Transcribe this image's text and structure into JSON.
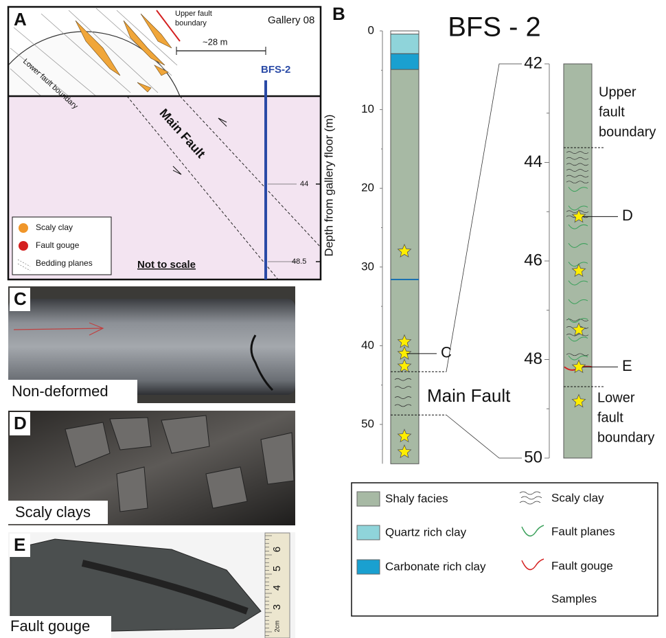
{
  "panel_a": {
    "letter": "A",
    "gallery": "Gallery 08",
    "upper_fault_boundary": [
      "Upper fault",
      "boundary"
    ],
    "lower_fault_boundary": "Lower fault boundary",
    "distance": "~28 m",
    "borehole": "BFS-2",
    "main_fault": "Main Fault",
    "depth_marks": [
      "44",
      "48.5"
    ],
    "legend": [
      "Scaly clay",
      "Fault gouge",
      "Bedding planes"
    ],
    "note": "Not to scale"
  },
  "panel_b": {
    "letter": "B",
    "title": "BFS - 2",
    "axis_label": "Depth from gallery floor (m)",
    "depth_ticks": [
      0,
      10,
      20,
      30,
      40,
      50
    ],
    "zoom_ticks": [
      42,
      44,
      46,
      48,
      50
    ],
    "main_fault": "Main Fault",
    "sample_labels": [
      "C",
      "D",
      "E"
    ],
    "upper_fault_boundary": [
      "Upper",
      "fault",
      "boundary"
    ],
    "lower_fault_boundary": [
      "Lower",
      "fault",
      "boundary"
    ]
  },
  "legend": {
    "items": [
      "Shaly facies",
      "Quartz rich clay",
      "Carbonate rich clay",
      "Scaly clay",
      "Fault planes",
      "Fault gouge",
      "Samples"
    ]
  },
  "photos": [
    {
      "letter": "C",
      "caption": "Non-deformed"
    },
    {
      "letter": "D",
      "caption": "Scaly clays"
    },
    {
      "letter": "E",
      "caption": "Fault gouge"
    }
  ],
  "ruler": [
    "6",
    "5",
    "4",
    "3",
    "2cm"
  ]
}
